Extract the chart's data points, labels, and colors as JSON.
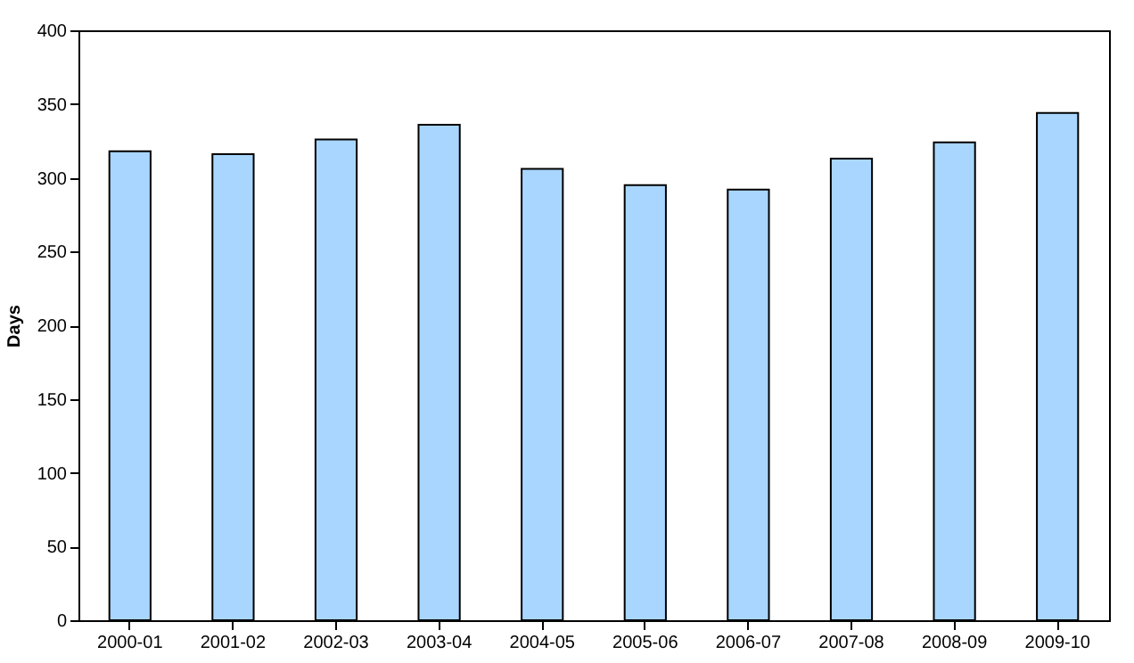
{
  "chart_data": {
    "type": "bar",
    "ylabel": "Days",
    "categories": [
      "2000-01",
      "2001-02",
      "2002-03",
      "2003-04",
      "2004-05",
      "2005-06",
      "2006-07",
      "2007-08",
      "2008-09",
      "2009-10"
    ],
    "values": [
      318,
      316,
      326,
      336,
      306,
      295,
      292,
      313,
      324,
      344
    ],
    "color": "#a8d6ff",
    "ylim": [
      0,
      400
    ],
    "yticks": [
      0,
      50,
      100,
      150,
      200,
      250,
      300,
      350,
      400
    ],
    "grid": false
  }
}
